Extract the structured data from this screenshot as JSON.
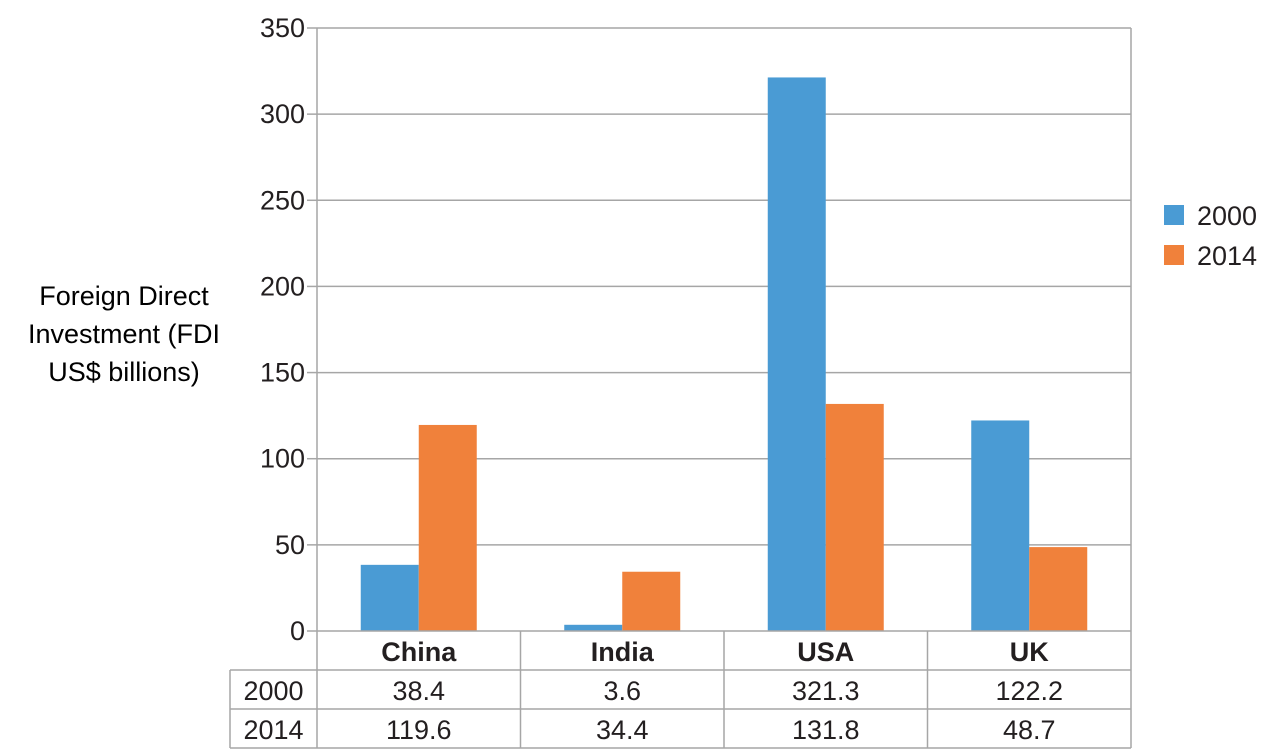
{
  "chart_data": {
    "type": "bar",
    "categories": [
      "China",
      "India",
      "USA",
      "UK"
    ],
    "series": [
      {
        "name": "2000",
        "values": [
          38.4,
          3.6,
          321.3,
          122.2
        ],
        "color": "#4a9bd4"
      },
      {
        "name": "2014",
        "values": [
          119.6,
          34.4,
          131.8,
          48.7
        ],
        "color": "#f0813b"
      }
    ],
    "ylabel_lines": [
      "Foreign Direct",
      "Investment (FDI",
      "US$ billions)"
    ],
    "xlabel": "",
    "ylim": [
      0,
      350
    ],
    "yticks": [
      0,
      50,
      100,
      150,
      200,
      250,
      300,
      350
    ],
    "grid": true,
    "legend_position": "right",
    "data_table": {
      "rows": [
        {
          "label": "2000",
          "cells": [
            "38.4",
            "3.6",
            "321.3",
            "122.2"
          ]
        },
        {
          "label": "2014",
          "cells": [
            "119.6",
            "34.4",
            "131.8",
            "48.7"
          ]
        }
      ]
    }
  }
}
